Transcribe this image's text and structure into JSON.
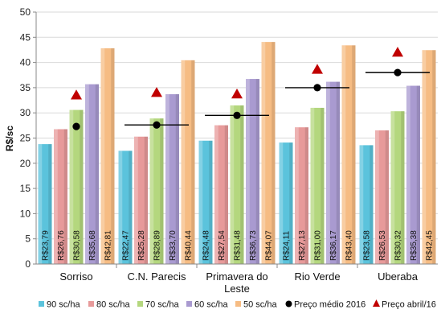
{
  "chart_data": {
    "type": "bar",
    "ylabel": "R$/sc",
    "ylim": [
      0,
      50
    ],
    "yticks": [
      0,
      5,
      10,
      15,
      20,
      25,
      30,
      35,
      40,
      45,
      50
    ],
    "grid": true,
    "legend_position": "bottom",
    "categories": [
      [
        "Sorriso"
      ],
      [
        "C.N. Parecis"
      ],
      [
        "Primavera do",
        "Leste"
      ],
      [
        "Rio Verde"
      ],
      [
        "Uberaba"
      ]
    ],
    "series": [
      {
        "name": "90 sc/ha",
        "color": "#5bc3dc",
        "values": [
          23.79,
          22.47,
          24.48,
          24.11,
          23.58
        ],
        "labels": [
          "R$23,79",
          "R$22,47",
          "R$24,48",
          "R$24,11",
          "R$23,58"
        ]
      },
      {
        "name": "80 sc/ha",
        "color": "#e79a9a",
        "values": [
          26.76,
          25.28,
          27.54,
          27.13,
          26.53
        ],
        "labels": [
          "R$26,76",
          "R$25,28",
          "R$27,54",
          "R$27,13",
          "R$26,53"
        ]
      },
      {
        "name": "70 sc/ha",
        "color": "#b4d77e",
        "values": [
          30.58,
          28.89,
          31.48,
          31.0,
          30.32
        ],
        "labels": [
          "R$30,58",
          "R$28,89",
          "R$31,48",
          "R$31,00",
          "R$30,32"
        ]
      },
      {
        "name": "60 sc/ha",
        "color": "#a99ad0",
        "values": [
          35.68,
          33.7,
          36.73,
          36.17,
          35.38
        ],
        "labels": [
          "R$35,68",
          "R$33,70",
          "R$36,73",
          "R$36,17",
          "R$35,38"
        ]
      },
      {
        "name": "50 sc/ha",
        "color": "#f6bc83",
        "values": [
          42.81,
          40.44,
          44.07,
          43.4,
          42.45
        ],
        "labels": [
          "R$42,81",
          "R$40,44",
          "R$44,07",
          "R$43,40",
          "R$42,45"
        ]
      }
    ],
    "markers": [
      {
        "name": "Preço médio 2016",
        "shape": "circle-line",
        "color": "#000000",
        "values": [
          27.3,
          27.6,
          29.5,
          35.0,
          38.0
        ]
      },
      {
        "name": "Preço abril/16",
        "shape": "triangle",
        "color": "#c00000",
        "values": [
          33.5,
          34.0,
          33.7,
          38.6,
          42.0
        ]
      }
    ]
  }
}
